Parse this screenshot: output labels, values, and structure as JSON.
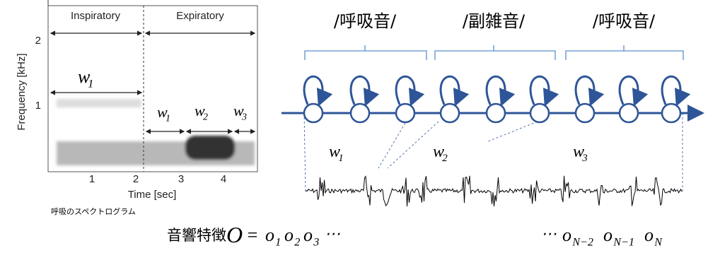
{
  "spectrogram": {
    "phases": [
      "Inspiratory",
      "Expiratory"
    ],
    "y_label": "Frequency [kHz]",
    "y_ticks": [
      "2",
      "1"
    ],
    "x_ticks": [
      "1",
      "2",
      "3",
      "4"
    ],
    "x_label": "Time [sec]",
    "caption": "呼吸のスペクトログラム",
    "segments": [
      {
        "w": "w",
        "sub": "1"
      },
      {
        "w": "w",
        "sub": "1"
      },
      {
        "w": "w",
        "sub": "2"
      },
      {
        "w": "w",
        "sub": "3"
      }
    ]
  },
  "hmm": {
    "groups": [
      "/呼吸音/",
      "/副雑音/",
      "/呼吸音/"
    ],
    "words": [
      {
        "w": "w",
        "sub": "1"
      },
      {
        "w": "w",
        "sub": "2"
      },
      {
        "w": "w",
        "sub": "3"
      }
    ]
  },
  "formula": {
    "label": "音響特徴",
    "symbol": "O",
    "equals": "=",
    "head": [
      {
        "o": "o",
        "sub": "1"
      },
      {
        "o": "o",
        "sub": "2"
      },
      {
        "o": "o",
        "sub": "3"
      }
    ],
    "ellipsis": "⋯",
    "tail": [
      {
        "o": "o",
        "sub": "N−2"
      },
      {
        "o": "o",
        "sub": "N−1"
      },
      {
        "o": "o",
        "sub": "N"
      }
    ]
  }
}
